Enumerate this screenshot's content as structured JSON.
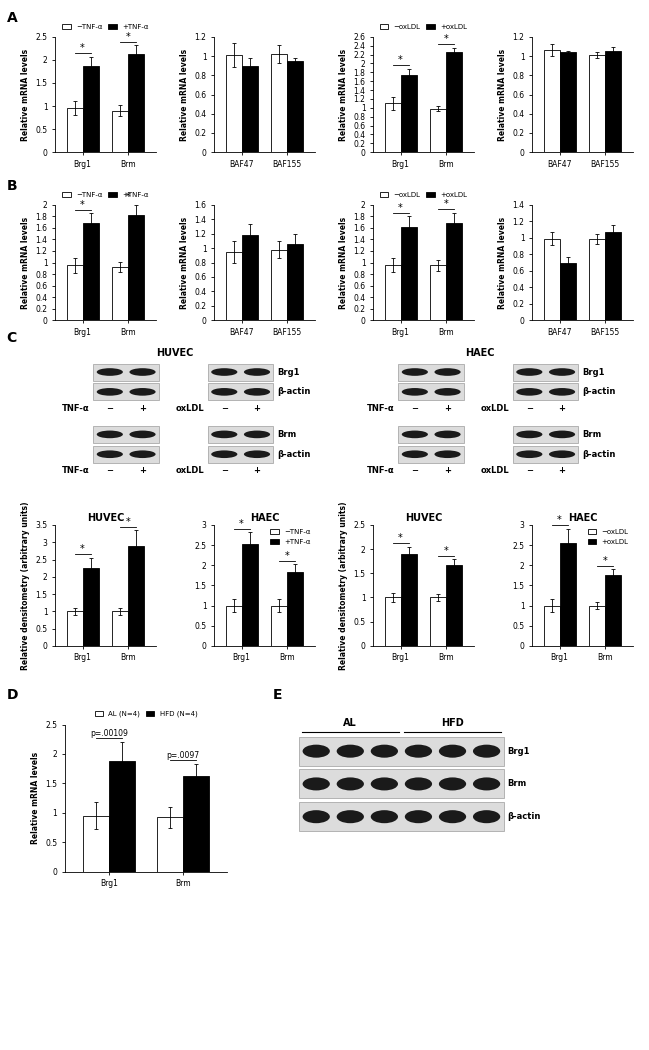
{
  "panel_labels": [
    "A",
    "B",
    "C",
    "D",
    "E"
  ],
  "chart_data": [
    {
      "type": "bar",
      "ylabel": "Relative mRNA levels",
      "categories": [
        "Brg1",
        "Brm"
      ],
      "ylim": [
        0,
        2.5
      ],
      "yticks": [
        0,
        0.5,
        1,
        1.5,
        2,
        2.5
      ],
      "legend": "top",
      "series": [
        {
          "name": "−TNF-α",
          "color": "#ffffff",
          "values": [
            0.95,
            0.9
          ],
          "errors": [
            0.15,
            0.12
          ]
        },
        {
          "name": "+TNF-α",
          "color": "#000000",
          "values": [
            1.87,
            2.12
          ],
          "errors": [
            0.2,
            0.2
          ]
        }
      ],
      "annotations": [
        "*",
        "*"
      ]
    },
    {
      "type": "bar",
      "ylabel": "Relative mRNA levels",
      "categories": [
        "BAF47",
        "BAF155"
      ],
      "ylim": [
        0,
        1.2
      ],
      "yticks": [
        0,
        0.2,
        0.4,
        0.6,
        0.8,
        1,
        1.2
      ],
      "series": [
        {
          "color": "#ffffff",
          "values": [
            1.01,
            1.02
          ],
          "errors": [
            0.12,
            0.09
          ]
        },
        {
          "color": "#000000",
          "values": [
            0.9,
            0.95
          ],
          "errors": [
            0.08,
            0.03
          ]
        }
      ]
    },
    {
      "type": "bar",
      "ylabel": "Relative mRNA levels",
      "categories": [
        "Brg1",
        "Brm"
      ],
      "ylim": [
        0,
        2.6
      ],
      "yticks": [
        0,
        0.2,
        0.4,
        0.6,
        0.8,
        1,
        1.2,
        1.4,
        1.6,
        1.8,
        2,
        2.2,
        2.4,
        2.6
      ],
      "legend": "top",
      "series": [
        {
          "name": "−oxLDL",
          "color": "#ffffff",
          "values": [
            1.1,
            0.98
          ],
          "errors": [
            0.15,
            0.05
          ]
        },
        {
          "name": "+oxLDL",
          "color": "#000000",
          "values": [
            1.75,
            2.25
          ],
          "errors": [
            0.13,
            0.1
          ]
        }
      ],
      "annotations": [
        "*",
        "*"
      ]
    },
    {
      "type": "bar",
      "ylabel": "Relative mRNA levels",
      "categories": [
        "BAF47",
        "BAF155"
      ],
      "ylim": [
        0,
        1.2
      ],
      "yticks": [
        0,
        0.2,
        0.4,
        0.6,
        0.8,
        1,
        1.2
      ],
      "series": [
        {
          "color": "#ffffff",
          "values": [
            1.06,
            1.01
          ],
          "errors": [
            0.06,
            0.03
          ]
        },
        {
          "color": "#000000",
          "values": [
            1.04,
            1.05
          ],
          "errors": [
            0.01,
            0.04
          ]
        }
      ]
    },
    {
      "type": "bar",
      "ylabel": "Relative mRNA levels",
      "categories": [
        "Brg1",
        "Brm"
      ],
      "ylim": [
        0,
        2
      ],
      "yticks": [
        0,
        0.2,
        0.4,
        0.6,
        0.8,
        1,
        1.2,
        1.4,
        1.6,
        1.8,
        2
      ],
      "legend": "top",
      "series": [
        {
          "name": "−TNF-α",
          "color": "#ffffff",
          "values": [
            0.95,
            0.92
          ],
          "errors": [
            0.13,
            0.09
          ]
        },
        {
          "name": "+TNF-α",
          "color": "#000000",
          "values": [
            1.68,
            1.82
          ],
          "errors": [
            0.17,
            0.17
          ]
        }
      ],
      "annotations": [
        "*",
        "*"
      ]
    },
    {
      "type": "bar",
      "ylabel": "Relative mRNA levels",
      "categories": [
        "BAF47",
        "BAF155"
      ],
      "ylim": [
        0,
        1.6
      ],
      "yticks": [
        0,
        0.2,
        0.4,
        0.6,
        0.8,
        1,
        1.2,
        1.4,
        1.6
      ],
      "series": [
        {
          "color": "#ffffff",
          "values": [
            0.95,
            0.98
          ],
          "errors": [
            0.15,
            0.12
          ]
        },
        {
          "color": "#000000",
          "values": [
            1.18,
            1.05
          ],
          "errors": [
            0.16,
            0.15
          ]
        }
      ]
    },
    {
      "type": "bar",
      "ylabel": "Relative mRNA levels",
      "categories": [
        "Brg1",
        "Brm"
      ],
      "ylim": [
        0,
        2
      ],
      "yticks": [
        0,
        0.2,
        0.4,
        0.6,
        0.8,
        1,
        1.2,
        1.4,
        1.6,
        1.8,
        2
      ],
      "legend": "top",
      "series": [
        {
          "name": "−oxLDL",
          "color": "#ffffff",
          "values": [
            0.95,
            0.95
          ],
          "errors": [
            0.12,
            0.1
          ]
        },
        {
          "name": "+oxLDL",
          "color": "#000000",
          "values": [
            1.62,
            1.68
          ],
          "errors": [
            0.18,
            0.18
          ]
        }
      ],
      "annotations": [
        "*",
        "*"
      ]
    },
    {
      "type": "bar",
      "ylabel": "Relative mRNA levels",
      "categories": [
        "BAF47",
        "BAF155"
      ],
      "ylim": [
        0,
        1.4
      ],
      "yticks": [
        0,
        0.2,
        0.4,
        0.6,
        0.8,
        1,
        1.2,
        1.4
      ],
      "series": [
        {
          "color": "#ffffff",
          "values": [
            0.99,
            0.98
          ],
          "errors": [
            0.08,
            0.06
          ]
        },
        {
          "color": "#000000",
          "values": [
            0.7,
            1.07
          ],
          "errors": [
            0.07,
            0.08
          ]
        }
      ]
    },
    {
      "type": "bar",
      "title": "HUVEC",
      "ylabel": "Relative densitometry (arbitrary units)",
      "categories": [
        "Brg1",
        "Brm"
      ],
      "ylim": [
        0,
        3.5
      ],
      "yticks": [
        0,
        0.5,
        1,
        1.5,
        2,
        2.5,
        3,
        3.5
      ],
      "series": [
        {
          "color": "#ffffff",
          "values": [
            1.0,
            1.0
          ],
          "errors": [
            0.1,
            0.1
          ]
        },
        {
          "color": "#000000",
          "values": [
            2.25,
            2.9
          ],
          "errors": [
            0.3,
            0.45
          ]
        }
      ],
      "annotations": [
        "*",
        "*"
      ]
    },
    {
      "type": "bar",
      "title": "HAEC",
      "categories": [
        "Brg1",
        "Brm"
      ],
      "ylim": [
        0,
        3
      ],
      "yticks": [
        0,
        0.5,
        1,
        1.5,
        2,
        2.5,
        3
      ],
      "legend": "upper right",
      "series": [
        {
          "name": "−TNF-α",
          "color": "#ffffff",
          "values": [
            1.0,
            1.0
          ],
          "errors": [
            0.15,
            0.15
          ]
        },
        {
          "name": "+TNF-α",
          "color": "#000000",
          "values": [
            2.52,
            1.82
          ],
          "errors": [
            0.3,
            0.2
          ]
        }
      ],
      "annotations": [
        "*",
        "*"
      ]
    },
    {
      "type": "bar",
      "title": "HUVEC",
      "ylabel": "Relative densitometry (arbitrary units)",
      "categories": [
        "Brg1",
        "Brm"
      ],
      "ylim": [
        0,
        2.5
      ],
      "yticks": [
        0,
        0.5,
        1,
        1.5,
        2,
        2.5
      ],
      "series": [
        {
          "color": "#ffffff",
          "values": [
            1.0,
            1.0
          ],
          "errors": [
            0.1,
            0.08
          ]
        },
        {
          "color": "#000000",
          "values": [
            1.9,
            1.67
          ],
          "errors": [
            0.15,
            0.12
          ]
        }
      ],
      "annotations": [
        "*",
        "*"
      ]
    },
    {
      "type": "bar",
      "title": "HAEC",
      "categories": [
        "Brg1",
        "Brm"
      ],
      "ylim": [
        0,
        3
      ],
      "yticks": [
        0,
        0.5,
        1,
        1.5,
        2,
        2.5,
        3
      ],
      "legend": "upper right",
      "series": [
        {
          "name": "−oxLDL",
          "color": "#ffffff",
          "values": [
            1.0,
            1.0
          ],
          "errors": [
            0.15,
            0.08
          ]
        },
        {
          "name": "+oxLDL",
          "color": "#000000",
          "values": [
            2.55,
            1.75
          ],
          "errors": [
            0.35,
            0.15
          ]
        }
      ],
      "annotations": [
        "*",
        "*"
      ]
    },
    {
      "type": "bar",
      "ylabel": "Relative mRNA levels",
      "categories": [
        "Brg1",
        "Brm"
      ],
      "ylim": [
        0,
        2.5
      ],
      "yticks": [
        0,
        0.5,
        1,
        1.5,
        2,
        2.5
      ],
      "legend": "top",
      "series": [
        {
          "name": "AL (N=4)",
          "color": "#ffffff",
          "values": [
            0.95,
            0.92
          ],
          "errors": [
            0.23,
            0.18
          ]
        },
        {
          "name": "HFD (N=4)",
          "color": "#000000",
          "values": [
            1.88,
            1.62
          ],
          "errors": [
            0.32,
            0.2
          ]
        }
      ],
      "annotations": [
        "p=.00109",
        "p=.0097"
      ]
    }
  ],
  "blot_C": {
    "lanes": [
      "−",
      "+"
    ],
    "groups": [
      {
        "title": "HUVEC",
        "rows": [
          {
            "proteins": [
              "Brg1",
              "β-actin"
            ],
            "treatments": [
              "TNF-α",
              "oxLDL"
            ]
          },
          {
            "proteins": [
              "Brm",
              "β-actin"
            ],
            "treatments": [
              "TNF-α",
              "oxLDL"
            ]
          }
        ]
      },
      {
        "title": "HAEC",
        "rows": [
          {
            "proteins": [
              "Brg1",
              "β-actin"
            ],
            "treatments": [
              "TNF-α",
              "oxLDL"
            ]
          },
          {
            "proteins": [
              "Brm",
              "β-actin"
            ],
            "treatments": [
              "TNF-α",
              "oxLDL"
            ]
          }
        ]
      }
    ]
  },
  "blot_E": {
    "groups": [
      "AL",
      "HFD"
    ],
    "lanes_per_group": 3,
    "proteins": [
      "Brg1",
      "Brm",
      "β-actin"
    ]
  }
}
